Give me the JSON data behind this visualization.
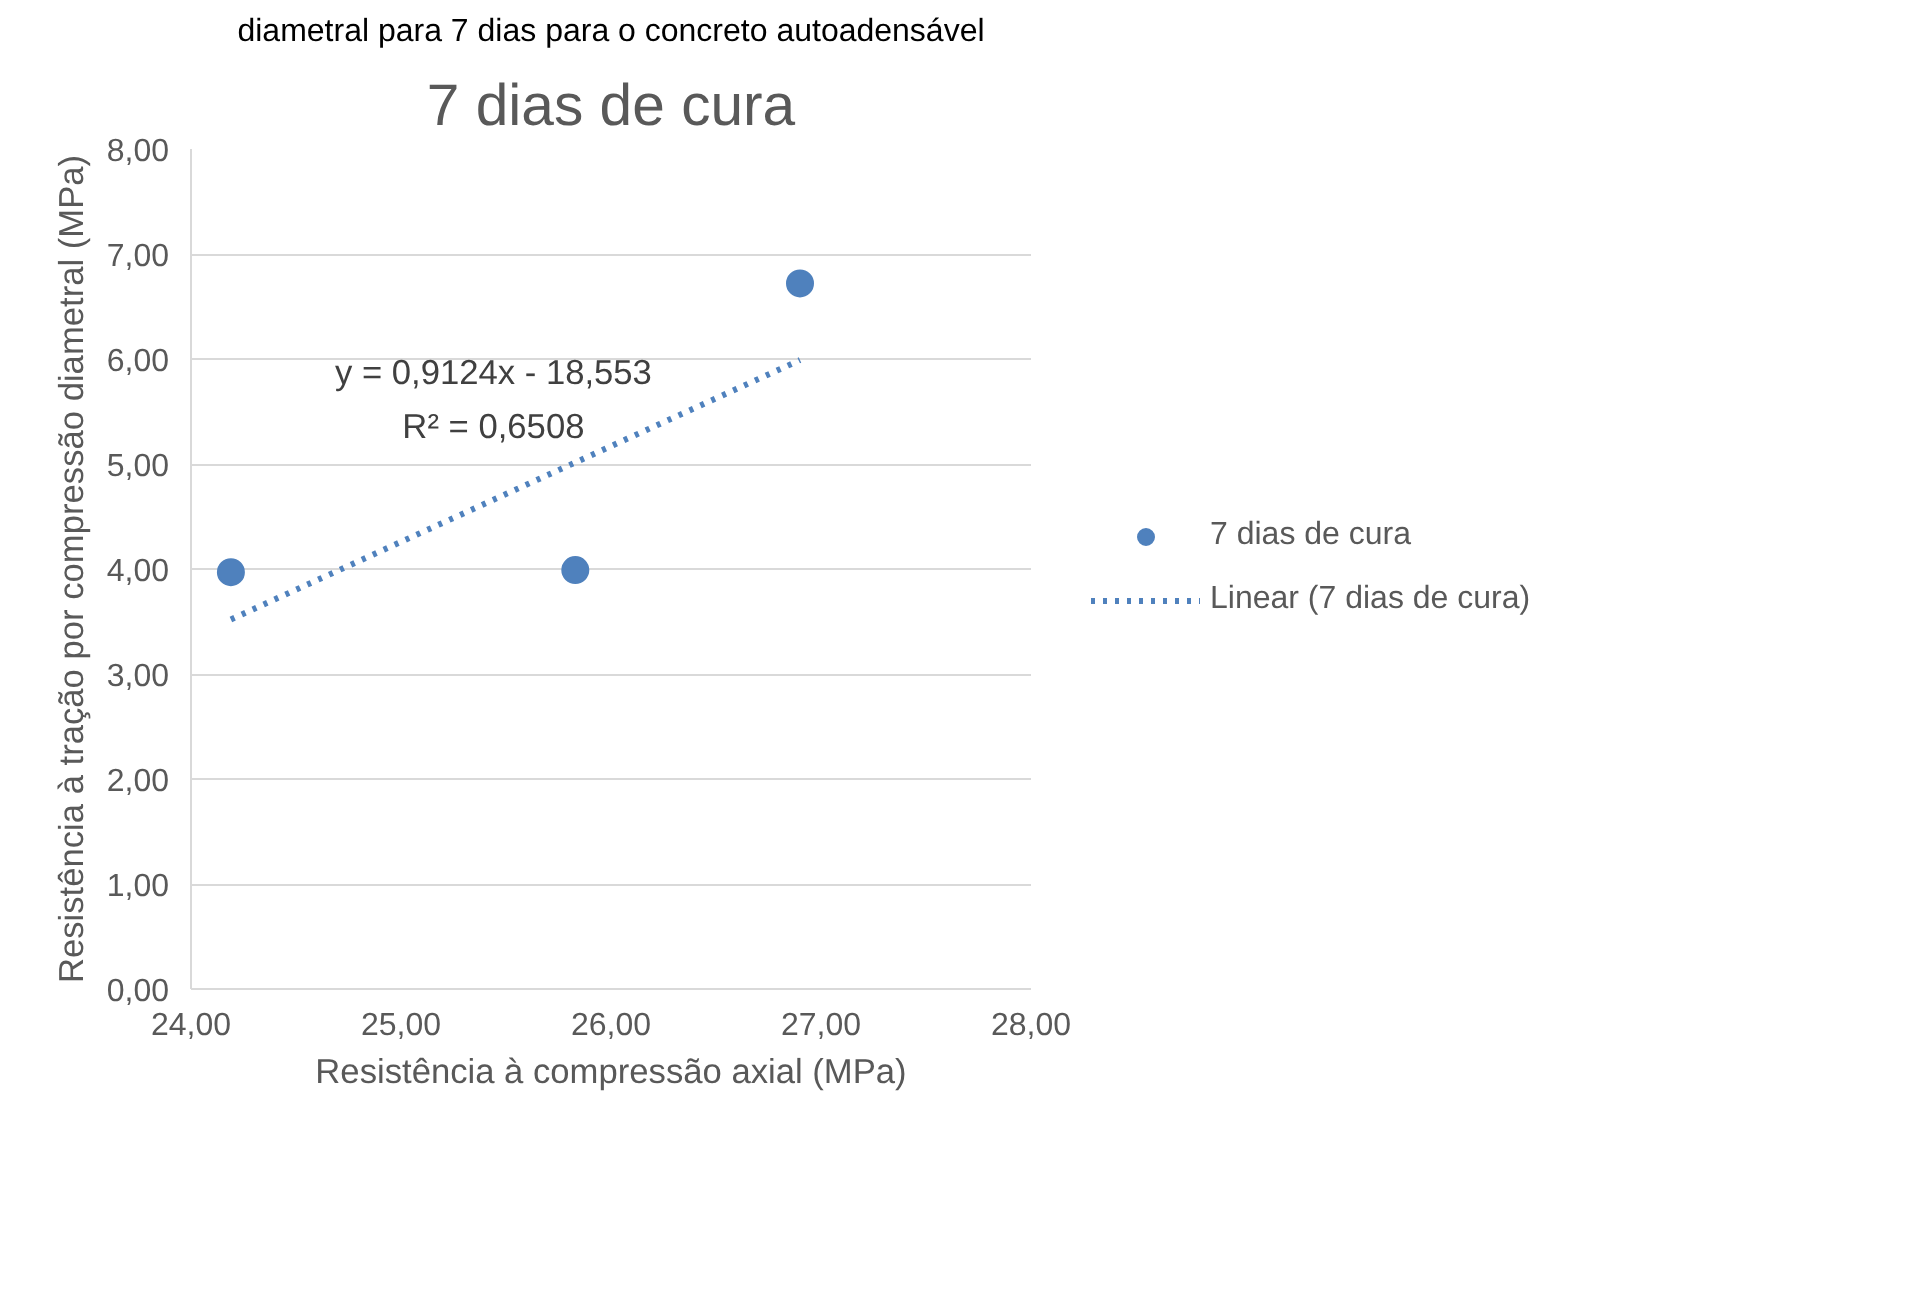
{
  "chart_data": {
    "type": "scatter",
    "title": "7 dias de cura",
    "subtitle": "diametral para 7 dias para o concreto autoadensável",
    "xlabel": "Resistência à compressão axial (MPa)",
    "ylabel": "Resistência à tração por compressão diametral (MPa)",
    "xlim": [
      24,
      28
    ],
    "xticks": [
      {
        "value": 24,
        "label": "24,00"
      },
      {
        "value": 25,
        "label": "25,00"
      },
      {
        "value": 26,
        "label": "26,00"
      },
      {
        "value": 27,
        "label": "27,00"
      },
      {
        "value": 28,
        "label": "28,00"
      }
    ],
    "ylim": [
      0,
      8
    ],
    "yticks": [
      {
        "value": 0,
        "label": "0,00"
      },
      {
        "value": 1,
        "label": "1,00"
      },
      {
        "value": 2,
        "label": "2,00"
      },
      {
        "value": 3,
        "label": "3,00"
      },
      {
        "value": 4,
        "label": "4,00"
      },
      {
        "value": 5,
        "label": "5,00"
      },
      {
        "value": 6,
        "label": "6,00"
      },
      {
        "value": 7,
        "label": "7,00"
      },
      {
        "value": 8,
        "label": "8,00"
      }
    ],
    "grid": "y",
    "legend": "right",
    "marker": "circle",
    "series": [
      {
        "name": "7 dias de cura",
        "color": "#4f81bd",
        "x": [
          24.19,
          25.83,
          26.9
        ],
        "values": [
          3.97,
          3.99,
          6.72
        ]
      },
      {
        "name": "Linear (7 dias de cura)",
        "type": "line",
        "line_style": "dotted",
        "marker": "none",
        "color": "#4f81bd",
        "x": [
          24.19,
          26.9
        ],
        "values": [
          3.52,
          5.99
        ]
      }
    ],
    "annotations": [
      "y = 0,9124x - 18,553",
      "R² = 0,6508"
    ]
  }
}
